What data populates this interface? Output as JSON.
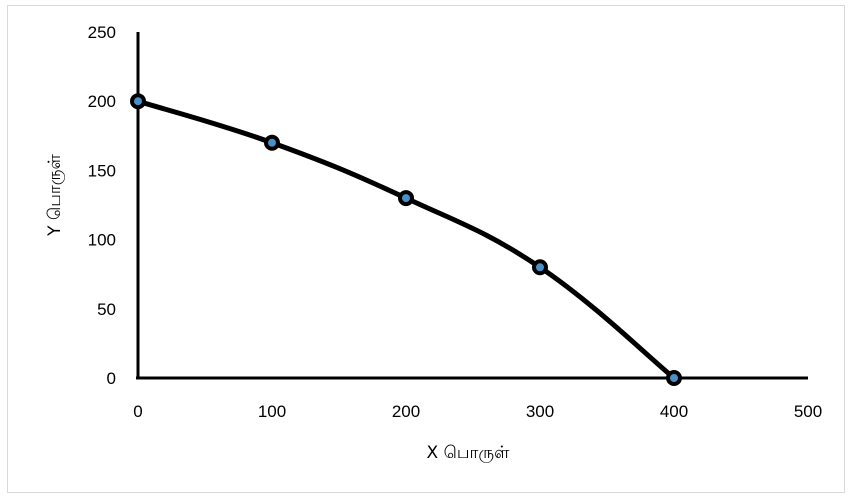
{
  "chart_data": {
    "type": "line",
    "title": "",
    "xlabel": "X பொருள்",
    "ylabel": "Y பொருள்",
    "xlim": [
      0,
      500
    ],
    "ylim": [
      0,
      250
    ],
    "x_ticks": [
      "0",
      "100",
      "200",
      "300",
      "400",
      "500"
    ],
    "y_ticks": [
      "0",
      "50",
      "100",
      "150",
      "200",
      "250"
    ],
    "grid": false,
    "legend": "none",
    "series": [
      {
        "x": [
          0,
          100,
          200,
          300,
          400
        ],
        "y": [
          200,
          170,
          130,
          80,
          0
        ],
        "smooth": true,
        "line_color": "#000000",
        "marker_fill": "#4a90c8"
      }
    ]
  }
}
